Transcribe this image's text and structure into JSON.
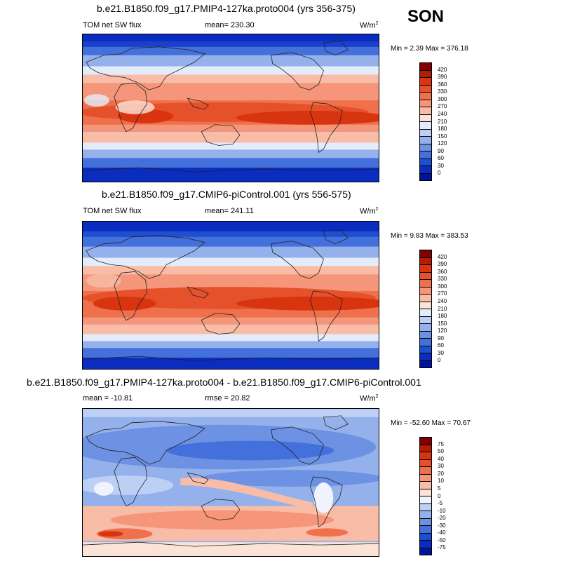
{
  "season": "SON",
  "panels": [
    {
      "title": "b.e21.B1850.f09_g17.PMIP4-127ka.proto004 (yrs 356-375)",
      "left_label": "TOM net SW flux",
      "center_label": "mean= 230.30",
      "units": "W/m",
      "units_sup": "2",
      "minmax": "Min =   2.39 Max = 376.18",
      "levels": [
        "420",
        "390",
        "360",
        "330",
        "300",
        "270",
        "240",
        "210",
        "180",
        "150",
        "120",
        "90",
        "60",
        "30",
        "0"
      ],
      "colors": [
        "#7f0000",
        "#b71c00",
        "#d8340f",
        "#e5512a",
        "#ef714c",
        "#f5967a",
        "#f9bda7",
        "#fbe3d7",
        "#e3ecfa",
        "#bccff4",
        "#94b1ec",
        "#6d91e3",
        "#4470dc",
        "#1f4fd1",
        "#0a2cbf",
        "#00139a"
      ]
    },
    {
      "title": "b.e21.B1850.f09_g17.CMIP6-piControl.001 (yrs 556-575)",
      "left_label": "TOM net SW flux",
      "center_label": "mean= 241.11",
      "units": "W/m",
      "units_sup": "2",
      "minmax": "Min =   9.83 Max = 383.53",
      "levels": [
        "420",
        "390",
        "360",
        "330",
        "300",
        "270",
        "240",
        "210",
        "180",
        "150",
        "120",
        "90",
        "60",
        "30",
        "0"
      ],
      "colors": [
        "#7f0000",
        "#b71c00",
        "#d8340f",
        "#e5512a",
        "#ef714c",
        "#f5967a",
        "#f9bda7",
        "#fbe3d7",
        "#e3ecfa",
        "#bccff4",
        "#94b1ec",
        "#6d91e3",
        "#4470dc",
        "#1f4fd1",
        "#0a2cbf",
        "#00139a"
      ]
    },
    {
      "title": "b.e21.B1850.f09_g17.PMIP4-127ka.proto004 - b.e21.B1850.f09_g17.CMIP6-piControl.001",
      "left_label": "mean = -10.81",
      "center_label": "rmse =  20.82",
      "units": "W/m",
      "units_sup": "2",
      "minmax": "Min = -52.60 Max =  70.67",
      "levels": [
        "75",
        "50",
        "40",
        "30",
        "20",
        "10",
        "5",
        "0",
        "-5",
        "-10",
        "-20",
        "-30",
        "-40",
        "-50",
        "-75"
      ],
      "colors": [
        "#7f0000",
        "#b71c00",
        "#d8340f",
        "#e5512a",
        "#ef714c",
        "#f5967a",
        "#f9bda7",
        "#fbe3d7",
        "#eef3fc",
        "#bccff4",
        "#94b1ec",
        "#6d91e3",
        "#4470dc",
        "#1f4fd1",
        "#0a2cbf",
        "#00139a"
      ]
    }
  ]
}
